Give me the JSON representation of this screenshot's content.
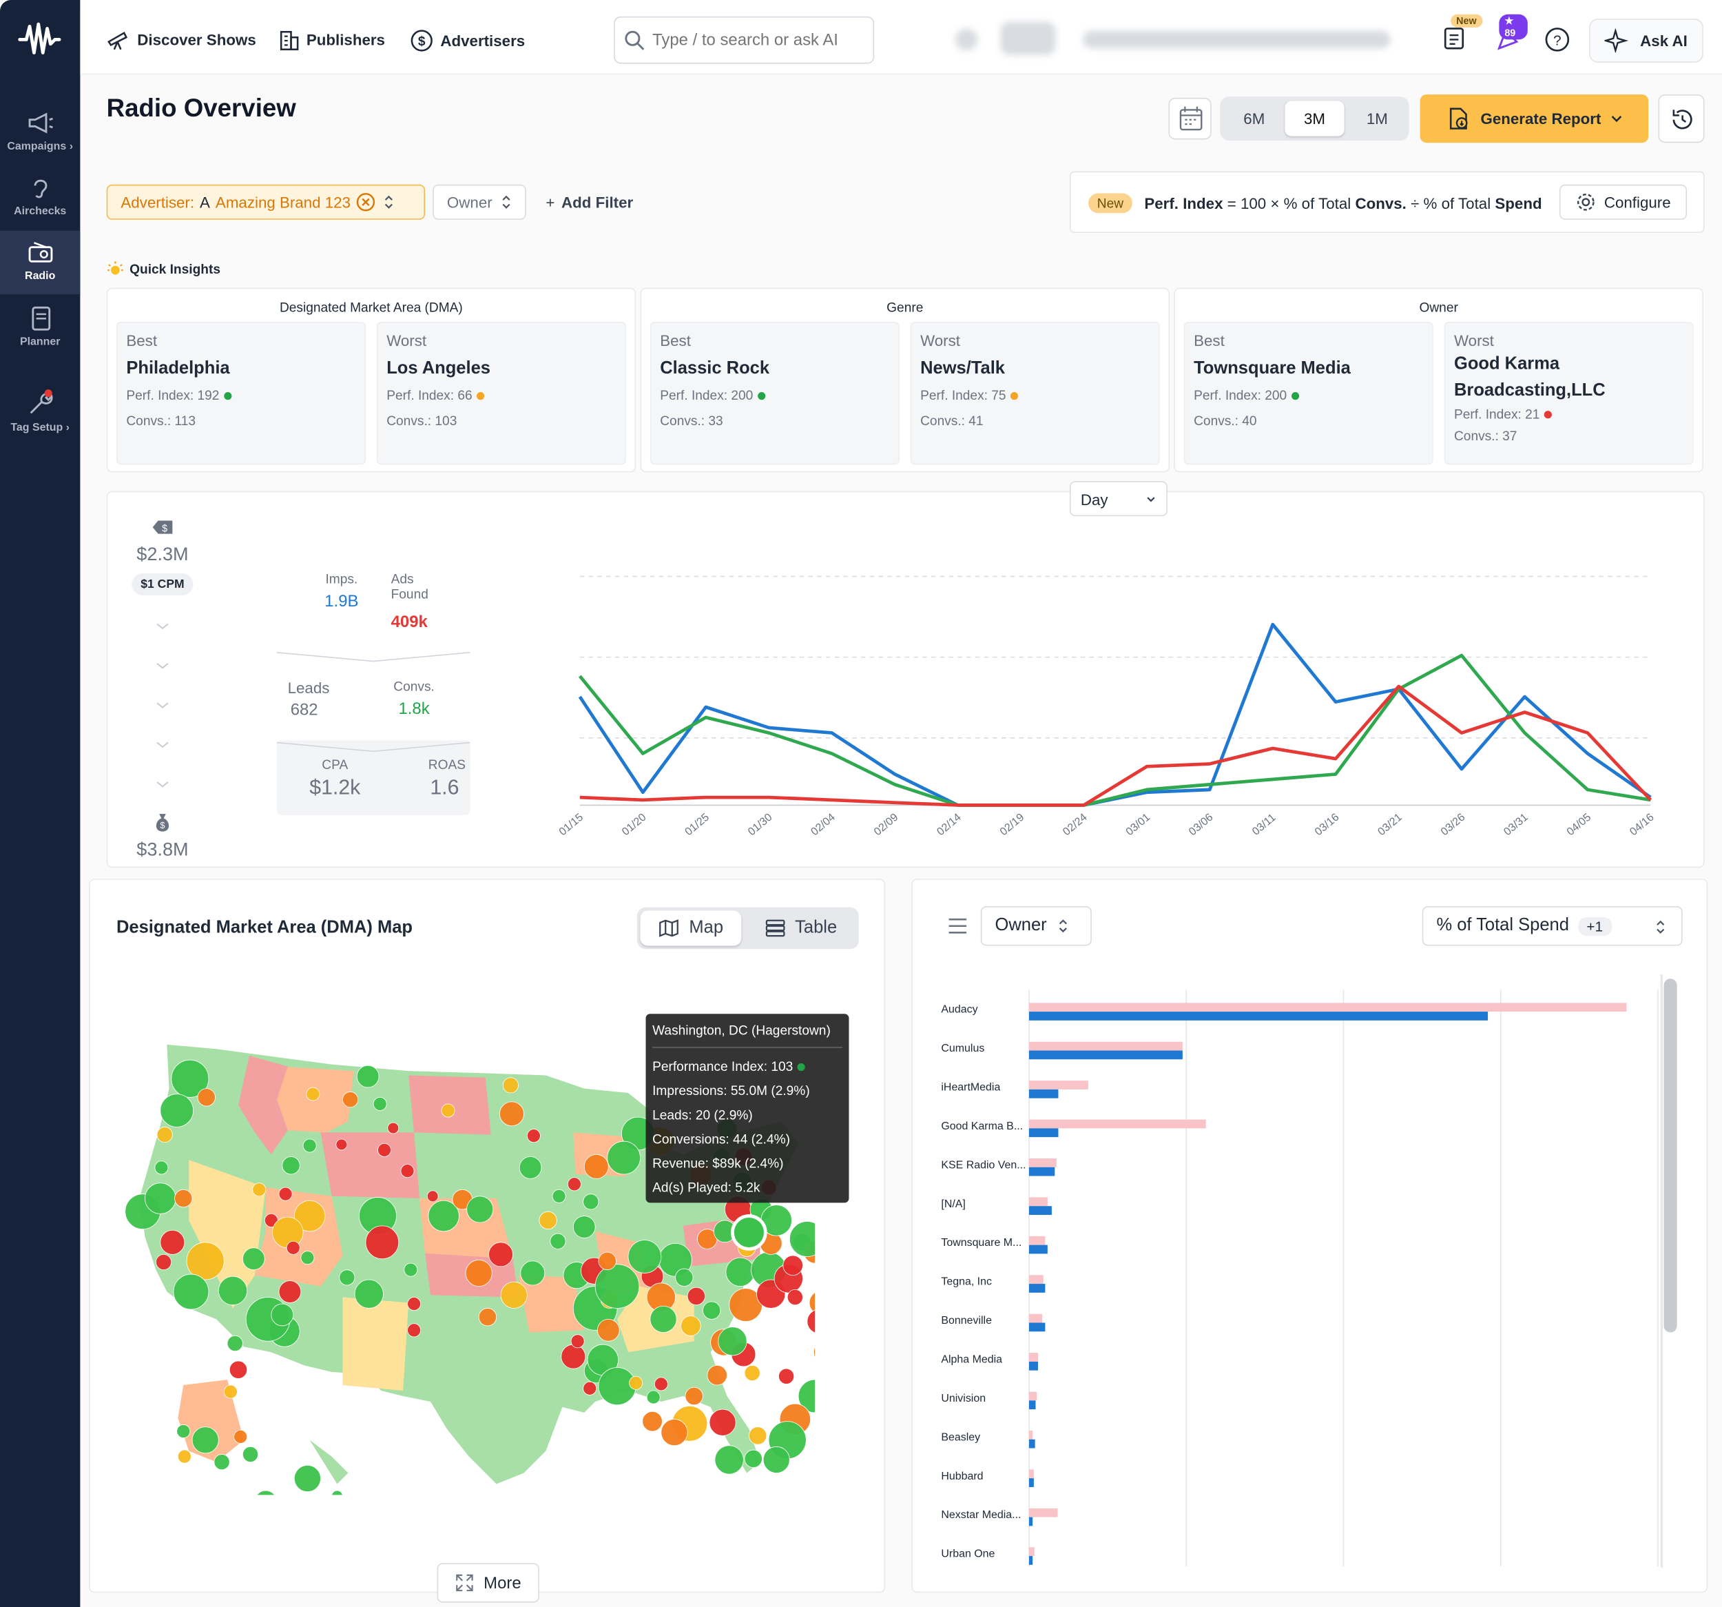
{
  "nav": {
    "links": [
      "Discover Shows",
      "Publishers",
      "Advertisers"
    ],
    "search_placeholder": "Type / to search or ask AI",
    "new_badge": "New",
    "notif_badge": "★ 89",
    "ask_ai": "Ask AI"
  },
  "sidebar": {
    "items": [
      "Campaigns ›",
      "Airchecks",
      "Radio",
      "Planner",
      "Tag Setup ›"
    ],
    "active": "Radio"
  },
  "page": {
    "title": "Radio Overview",
    "ranges": [
      "6M",
      "3M",
      "1M"
    ],
    "active_range": "3M",
    "generate_report": "Generate Report"
  },
  "filters": {
    "advertiser_label": "Advertiser:",
    "advertiser_initial": "A",
    "advertiser_value": "Amazing Brand 123",
    "owner": "Owner",
    "add_filter": "Add Filter"
  },
  "perf": {
    "new": "New",
    "index_label": "Perf. Index",
    "formula_a": " = 100 × % of Total ",
    "convs": "Convs.",
    "formula_b": " ÷ % of Total ",
    "spend": "Spend",
    "configure": "Configure"
  },
  "insights": {
    "heading": "Quick Insights",
    "groups": [
      {
        "title": "Designated Market Area (DMA)",
        "best": {
          "label": "Best",
          "name": "Philadelphia",
          "perf": "Perf. Index: 192",
          "convs": "Convs.: 113",
          "status": "#22a447"
        },
        "worst": {
          "label": "Worst",
          "name": "Los Angeles",
          "perf": "Perf. Index: 66",
          "convs": "Convs.: 103",
          "status": "#f5a524"
        }
      },
      {
        "title": "Genre",
        "best": {
          "label": "Best",
          "name": "Classic Rock",
          "perf": "Perf. Index: 200",
          "convs": "Convs.: 33",
          "status": "#22a447"
        },
        "worst": {
          "label": "Worst",
          "name": "News/Talk",
          "perf": "Perf. Index: 75",
          "convs": "Convs.: 41",
          "status": "#f5a524"
        }
      },
      {
        "title": "Owner",
        "best": {
          "label": "Best",
          "name": "Townsquare Media",
          "perf": "Perf. Index: 200",
          "convs": "Convs.: 40",
          "status": "#22a447"
        },
        "worst": {
          "label": "Worst",
          "name": "Good Karma Broadcasting,LLC",
          "perf": "Perf. Index: 21",
          "convs": "Convs.: 37",
          "status": "#e53935"
        }
      }
    ]
  },
  "summary": {
    "spend": "$2.3M",
    "cpm": "$1 CPM",
    "revenue": "$3.8M",
    "imps_label": "Imps.",
    "imps": "1.9B",
    "ads_label_1": "Ads",
    "ads_label_2": "Found",
    "ads": "409k",
    "leads_label": "Leads",
    "leads": "682",
    "convs_label": "Convs.",
    "convs": "1.8k",
    "cpa_label": "CPA",
    "cpa": "$1.2k",
    "roas_label": "ROAS",
    "roas": "1.6",
    "granularity": "Day"
  },
  "chart_data": [
    {
      "type": "line",
      "x": [
        "01/15",
        "01/20",
        "01/25",
        "01/30",
        "02/04",
        "02/09",
        "02/14",
        "02/19",
        "02/24",
        "03/01",
        "03/06",
        "03/11",
        "03/16",
        "03/21",
        "03/26",
        "03/31",
        "04/05",
        "04/16"
      ],
      "series": [
        {
          "color": "#1f78d1",
          "values": [
            42,
            5,
            38,
            30,
            28,
            12,
            0,
            0,
            0,
            5,
            6,
            70,
            40,
            45,
            14,
            42,
            20,
            3
          ]
        },
        {
          "color": "#2fa84f",
          "values": [
            50,
            20,
            34,
            28,
            20,
            8,
            0,
            0,
            0,
            6,
            8,
            10,
            12,
            45,
            58,
            28,
            6,
            2
          ]
        },
        {
          "color": "#e53935",
          "values": [
            3,
            2,
            3,
            3,
            2,
            1,
            0,
            0,
            0,
            15,
            16,
            22,
            18,
            46,
            28,
            36,
            28,
            2
          ]
        }
      ],
      "ylim": [
        0,
        100
      ],
      "grid": true,
      "legend": "none"
    },
    {
      "type": "bar",
      "categories": [
        "Audacy",
        "Cumulus",
        "iHeartMedia",
        "Good Karma B...",
        "KSE Radio Ven...",
        "[N/A]",
        "Townsquare M...",
        "Tegna, Inc",
        "Bonneville",
        "Alpha Media",
        "Univision",
        "Beasley",
        "Hubbard",
        "Nexstar Media...",
        "Urban One"
      ],
      "series": [
        {
          "color": "#f9c4c8",
          "values": [
            100,
            25.7,
            9.9,
            29.6,
            4.6,
            3.1,
            2.7,
            2.4,
            2.2,
            1.5,
            1.3,
            0.6,
            0.8,
            4.8,
            0.9
          ]
        },
        {
          "color": "#1f78d1",
          "values": [
            76.8,
            25.7,
            4.9,
            4.9,
            4.3,
            3.8,
            3.1,
            2.7,
            2.7,
            1.5,
            1.1,
            1.0,
            0.8,
            0.6,
            0.6
          ]
        }
      ],
      "grid": true
    }
  ],
  "map": {
    "title": "Designated Market Area (DMA) Map",
    "toggle_map": "Map",
    "toggle_table": "Table",
    "more": "More",
    "tooltip": {
      "title": "Washington, DC (Hagerstown)",
      "lines": [
        "Performance Index: 103",
        "Impressions: 55.0M (2.9%)",
        "Leads: 20 (2.9%)",
        "Conversions: 44 (2.4%)",
        "Revenue: $89k (2.4%)",
        "Ad(s) Played: 5.2k"
      ]
    }
  },
  "bars": {
    "group_by": "Owner",
    "metric": "% of Total Spend",
    "metric_extra": "+1"
  },
  "colors": {
    "sidebar": "#16213a",
    "accent": "#fbbf4a",
    "green": "#22a447",
    "orange": "#f5a524",
    "red": "#e53935",
    "blue": "#1f78d1"
  }
}
